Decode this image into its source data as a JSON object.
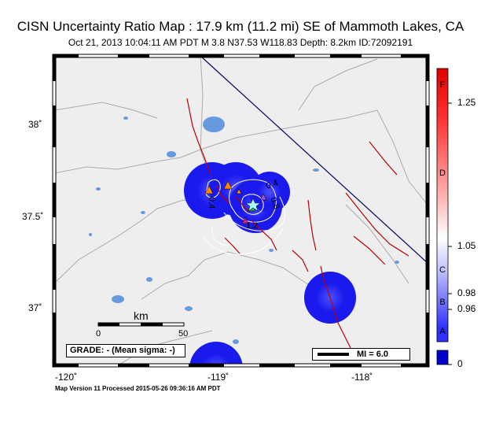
{
  "header": {
    "title": "CISN Uncertainty Ratio Map : 17.9 km (11.2 mi) SE of Mammoth Lakes, CA",
    "subtitle": "Oct 21, 2013 10:04:11 AM PDT   M 3.8   N37.53 W118.83   Depth: 8.2km   ID:72092191"
  },
  "axes": {
    "lat_labels": [
      "38˚",
      "37.5˚",
      "37˚"
    ],
    "lon_labels": [
      "-120˚",
      "-119˚",
      "-118˚"
    ]
  },
  "scale": {
    "unit": "km",
    "start": "0",
    "end": "50"
  },
  "grade_box": {
    "text": "GRADE: - (Mean sigma: -)"
  },
  "mi_legend": {
    "text": "MI = 6.0"
  },
  "contour_labels": [
    "0.4",
    "0.8",
    "0.4",
    "1.2"
  ],
  "colorbar": {
    "letters": [
      "F",
      "D",
      "C",
      "B",
      "A"
    ],
    "values": [
      "1.25",
      "1.05",
      "0.98",
      "0.96",
      "0"
    ],
    "colors": {
      "top": "#e00000",
      "mid": "#ffffff",
      "low": "#3030ff",
      "bottom": "#0000cc"
    }
  },
  "map_colors": {
    "land": "#eeeeee",
    "uncertainty_blue": "#1a1aee",
    "fault_red": "#bb0000",
    "state_border": "#000066",
    "lake_blue": "#6699dd",
    "county_gray": "#aaaaaa"
  },
  "footer": {
    "text": "Map Version 11 Processed 2015-05-26 09:36:16 AM PDT"
  }
}
